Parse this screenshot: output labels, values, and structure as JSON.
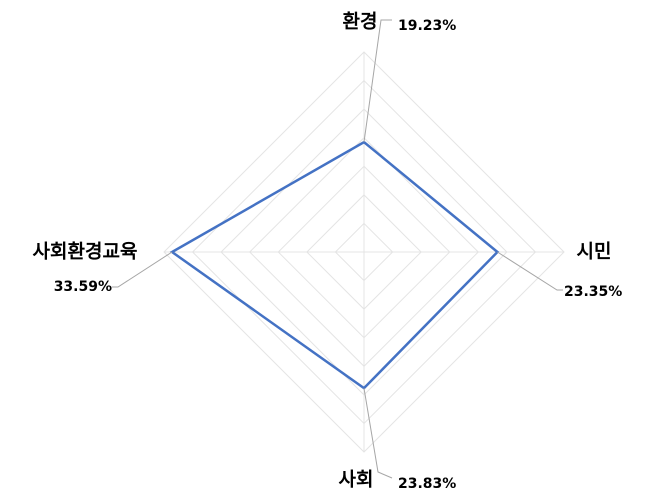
{
  "chart_data": {
    "type": "radar",
    "categories": [
      "환경",
      "시민",
      "사회",
      "사회환경교육"
    ],
    "values": [
      19.23,
      23.35,
      23.83,
      33.59
    ],
    "value_labels": [
      "19.23%",
      "23.35%",
      "23.83%",
      "33.59%"
    ],
    "color": "#4472c4",
    "rlim": [
      0,
      35
    ],
    "rticks": [
      0,
      5,
      10,
      15,
      20,
      25,
      30,
      35
    ],
    "grid": true
  }
}
